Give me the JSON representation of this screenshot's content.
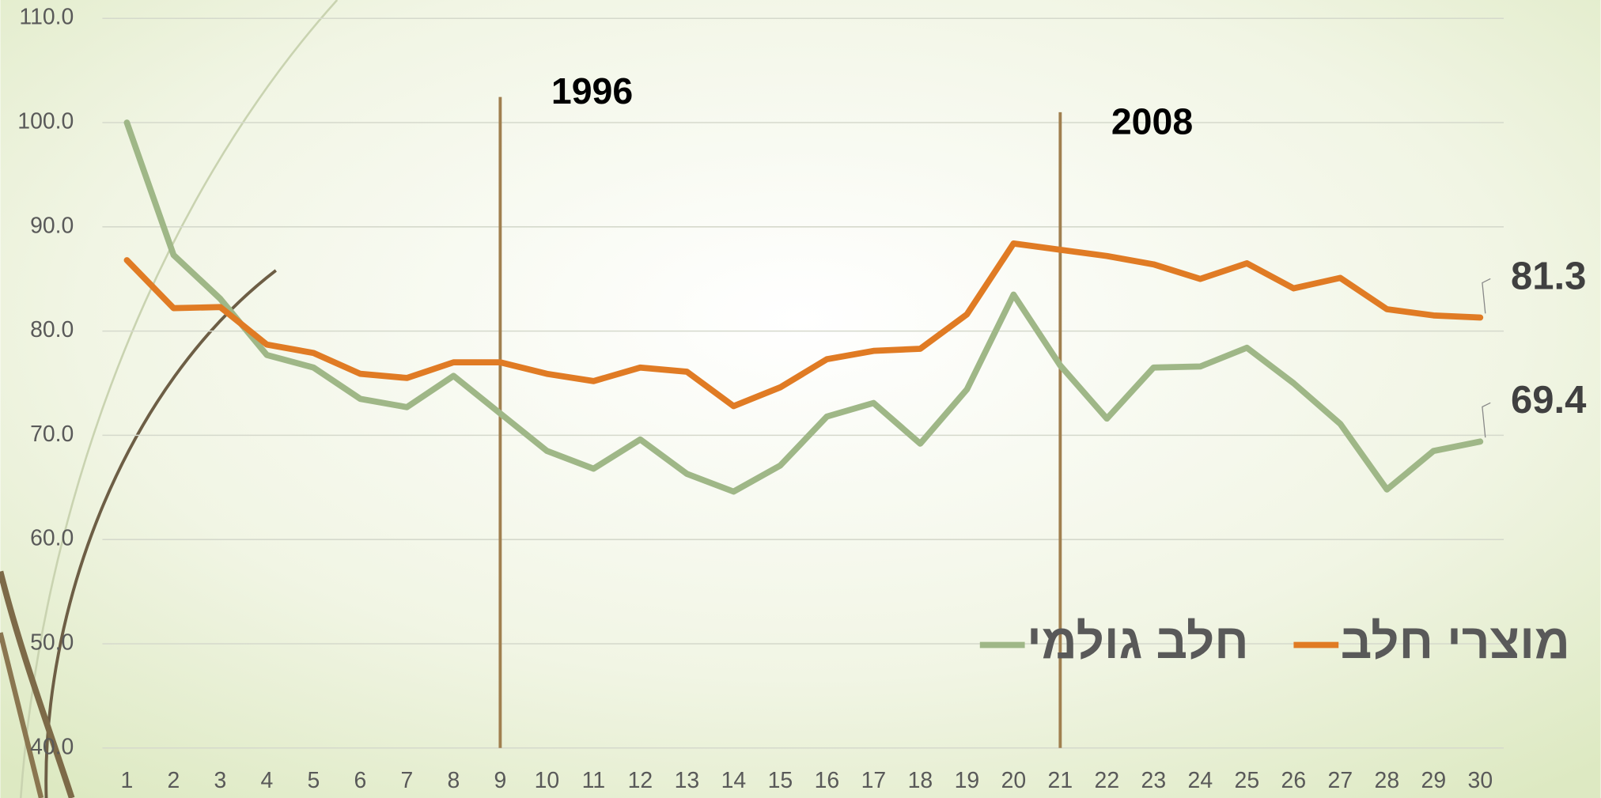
{
  "chart_data": {
    "type": "line",
    "x": [
      1,
      2,
      3,
      4,
      5,
      6,
      7,
      8,
      9,
      10,
      11,
      12,
      13,
      14,
      15,
      16,
      17,
      18,
      19,
      20,
      21,
      22,
      23,
      24,
      25,
      26,
      27,
      28,
      29,
      30
    ],
    "series": [
      {
        "name": "מוצרי חלב",
        "color": "#e07b24",
        "values": [
          86.8,
          82.2,
          82.3,
          78.7,
          77.9,
          75.9,
          75.5,
          77.0,
          77.0,
          75.9,
          75.2,
          76.5,
          76.1,
          72.8,
          74.6,
          77.3,
          78.1,
          78.3,
          81.6,
          88.4,
          87.8,
          87.2,
          86.4,
          85.0,
          86.5,
          84.1,
          85.1,
          82.1,
          81.5,
          81.3
        ]
      },
      {
        "name": "חלב גולמי",
        "color": "#9fb787",
        "values": [
          100.0,
          87.3,
          83.1,
          77.7,
          76.5,
          73.5,
          72.7,
          75.7,
          72.1,
          68.5,
          66.8,
          69.6,
          66.3,
          64.6,
          67.1,
          71.8,
          73.1,
          69.2,
          74.4,
          83.5,
          76.7,
          71.6,
          76.5,
          76.6,
          78.4,
          75.0,
          71.1,
          64.8,
          68.5,
          69.4
        ]
      }
    ],
    "ylim": [
      40,
      110
    ],
    "yticks": [
      {
        "value": 40,
        "label": "40.0"
      },
      {
        "value": 50,
        "label": "50.0"
      },
      {
        "value": 60,
        "label": "60.0"
      },
      {
        "value": 70,
        "label": "70.0"
      },
      {
        "value": 80,
        "label": "80.0"
      },
      {
        "value": 90,
        "label": "90.0"
      },
      {
        "value": 100,
        "label": "100.0"
      },
      {
        "value": 110,
        "label": "110.0"
      }
    ],
    "grid": true,
    "annotations": [
      {
        "label": "1996",
        "x": 9
      },
      {
        "label": "2008",
        "x": 21
      }
    ],
    "legend": "lower right"
  }
}
